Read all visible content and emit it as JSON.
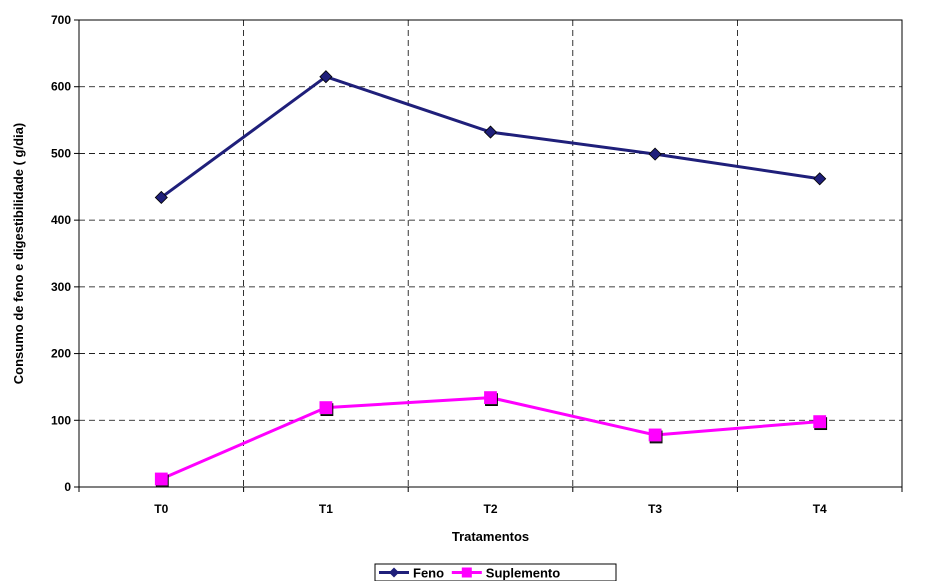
{
  "chart_data": {
    "type": "line",
    "categories": [
      "T0",
      "T1",
      "T2",
      "T3",
      "T4"
    ],
    "series": [
      {
        "name": "Feno",
        "values": [
          434,
          615,
          532,
          499,
          462
        ],
        "color": "#1f1f7a",
        "marker": "diamond"
      },
      {
        "name": "Suplemento",
        "values": [
          12,
          119,
          134,
          78,
          98
        ],
        "color": "#ff00ff",
        "marker": "square"
      }
    ],
    "xlabel": "Tratamentos",
    "ylabel": "Consumo de feno e digestibilidade ( g/dia)",
    "ylim": [
      0,
      700
    ],
    "yticks": [
      0,
      100,
      200,
      300,
      400,
      500,
      600,
      700
    ],
    "grid": true,
    "grid_style": "dashed",
    "legend_position": "bottom-center"
  }
}
